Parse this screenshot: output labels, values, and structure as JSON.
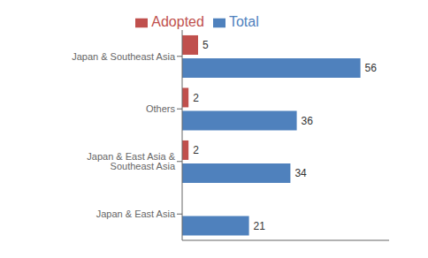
{
  "chart_data": {
    "type": "bar",
    "orientation": "horizontal",
    "categories": [
      "Japan & Southeast Asia",
      "Others",
      "Japan & East Asia & Southeast Asia",
      "Japan & East Asia"
    ],
    "series": [
      {
        "name": "Adopted",
        "color": "#C0504D",
        "values": [
          5,
          2,
          2,
          0
        ]
      },
      {
        "name": "Total",
        "color": "#4F81BD",
        "values": [
          56,
          36,
          34,
          21
        ]
      }
    ],
    "xlim": [
      0,
      65
    ],
    "grid": false,
    "legend": "top",
    "data_labels": true,
    "tick_labels": "y"
  }
}
